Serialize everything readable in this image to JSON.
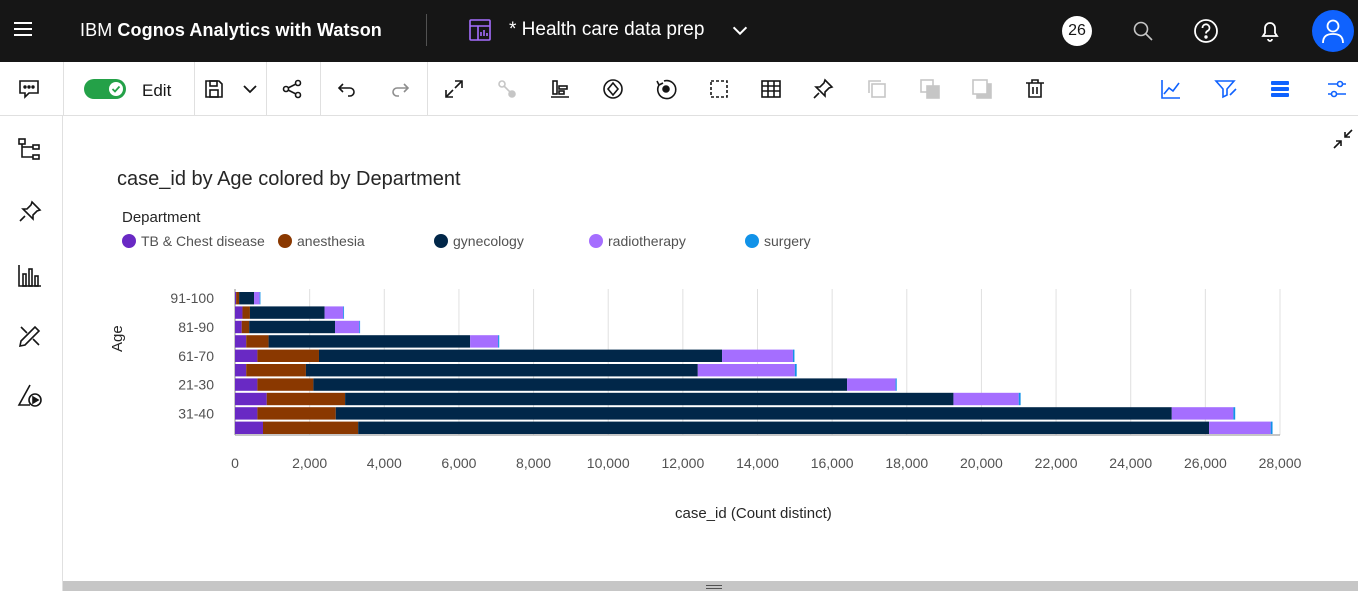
{
  "header": {
    "brand_prefix": "IBM ",
    "brand_bold": "Cognos Analytics with Watson",
    "report_title": "* Health care data prep",
    "notification_count": "26"
  },
  "toolbar": {
    "edit_label": "Edit",
    "edit_mode": true
  },
  "colors": {
    "topbar": "#161616",
    "accent": "#0f62fe",
    "toggle_on": "#24a148"
  },
  "chart_data": {
    "type": "bar",
    "orientation": "horizontal",
    "stacked": true,
    "title": "case_id by Age colored by Department",
    "legend_title": "Department",
    "xlabel": "case_id (Count distinct)",
    "ylabel": "Age",
    "xlim": [
      0,
      28000
    ],
    "xticks": [
      "0",
      "2,000",
      "4,000",
      "6,000",
      "8,000",
      "10,000",
      "12,000",
      "14,000",
      "16,000",
      "18,000",
      "20,000",
      "22,000",
      "24,000",
      "26,000",
      "28,000"
    ],
    "categories": [
      "91-100",
      "",
      "81-90",
      "",
      "61-70",
      "",
      "21-30",
      "",
      "31-40",
      ""
    ],
    "series": [
      {
        "name": "TB & Chest disease",
        "color": "#6929c4",
        "values": [
          30,
          200,
          180,
          300,
          600,
          300,
          600,
          850,
          600,
          750
        ]
      },
      {
        "name": "anesthesia",
        "color": "#8a3800",
        "values": [
          80,
          200,
          200,
          600,
          1650,
          1600,
          1500,
          2100,
          2100,
          2550
        ]
      },
      {
        "name": "gynecology",
        "color": "#012749",
        "values": [
          400,
          2000,
          2300,
          5400,
          10800,
          10500,
          14300,
          16300,
          22400,
          22800
        ]
      },
      {
        "name": "radiotherapy",
        "color": "#a56eff",
        "values": [
          150,
          500,
          650,
          750,
          1900,
          2600,
          1300,
          1750,
          1650,
          1650
        ]
      },
      {
        "name": "surgery",
        "color": "#1192e8",
        "values": [
          10,
          20,
          20,
          30,
          40,
          50,
          30,
          50,
          50,
          50
        ]
      }
    ],
    "grid": true
  }
}
